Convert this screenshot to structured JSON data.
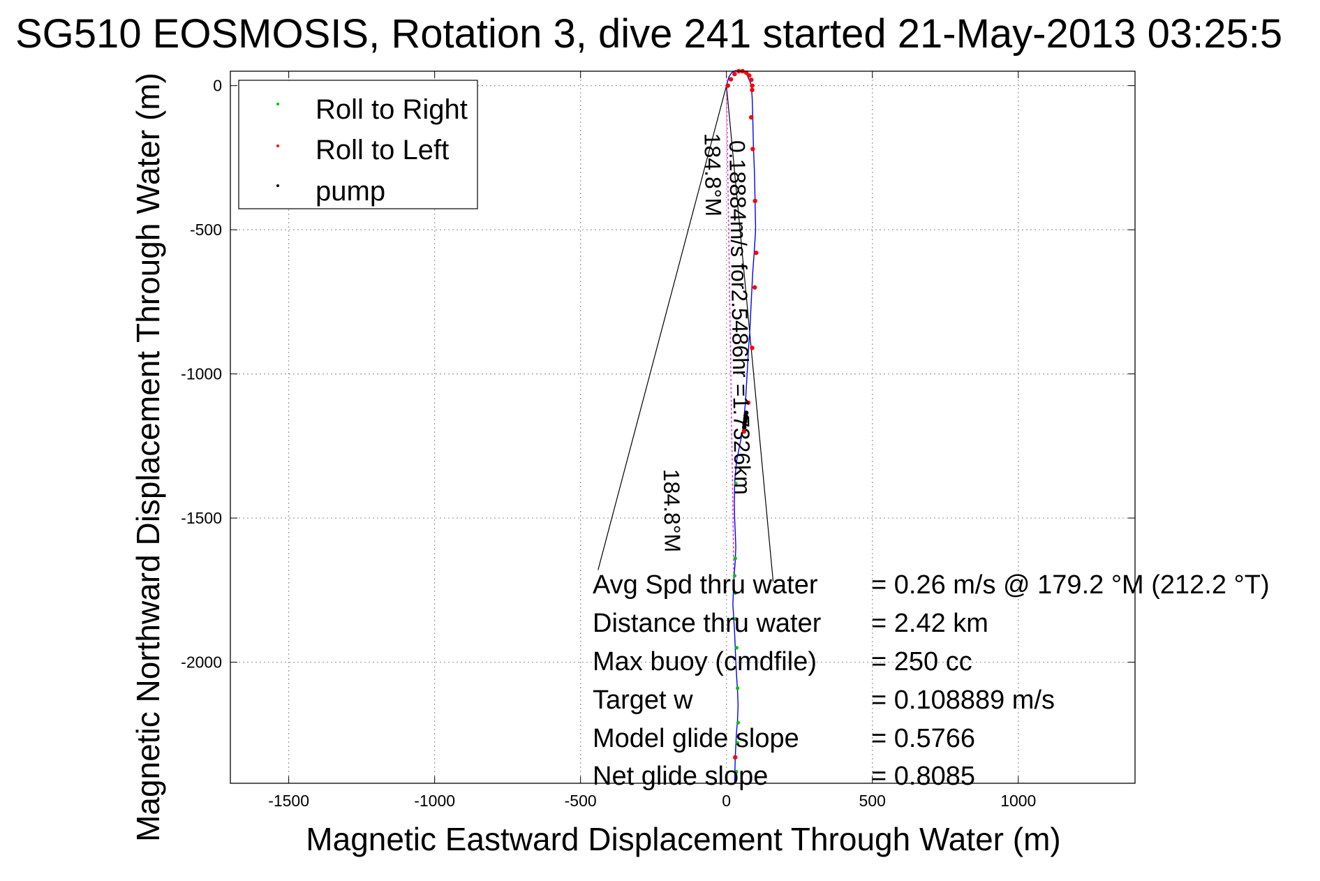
{
  "chart_data": {
    "type": "scatter",
    "title": "SG510 EOSMOSIS, Rotation 3, dive 241 started 21-May-2013 03:25:5",
    "xlabel": "Magnetic Eastward Displacement Through Water (m)",
    "ylabel": "Magnetic Northward Displacement Through Water (m)",
    "xlim": [
      -1700,
      1400
    ],
    "ylim": [
      -2420,
      50
    ],
    "x_ticks": [
      -1500,
      -1000,
      -500,
      0,
      500,
      1000
    ],
    "x_tick_labels": [
      "-1500",
      "-1000",
      "-500",
      "0",
      "500",
      "1000"
    ],
    "y_ticks": [
      0,
      -500,
      -1000,
      -1500,
      -2000
    ],
    "y_tick_labels": [
      "0",
      "-500",
      "-1000",
      "-1500",
      "-2000"
    ],
    "grid": true,
    "legend_position": "top-left",
    "legend": [
      {
        "label": "Roll to Right",
        "color": "#00c000"
      },
      {
        "label": "Roll to Left",
        "color": "#ff0000"
      },
      {
        "label": "pump",
        "color": "#000000"
      }
    ],
    "track_color": "#0000ff",
    "current_vector_color": "#ff00ff",
    "track": {
      "x": [
        0,
        8,
        18,
        30,
        45,
        60,
        70,
        80,
        85,
        88,
        90,
        92,
        96,
        98,
        100,
        95,
        90,
        85,
        80,
        75,
        72,
        68,
        65,
        60,
        55,
        45,
        35,
        30,
        28,
        27,
        28,
        30,
        32,
        30,
        26,
        24,
        22,
        25,
        28,
        30,
        32,
        35,
        38,
        40,
        38,
        34,
        30,
        28
      ],
      "y": [
        0,
        30,
        45,
        52,
        52,
        48,
        38,
        15,
        0,
        -40,
        -100,
        -200,
        -300,
        -400,
        -500,
        -580,
        -650,
        -750,
        -850,
        -920,
        -980,
        -1050,
        -1100,
        -1150,
        -1200,
        -1250,
        -1300,
        -1350,
        -1380,
        -1450,
        -1500,
        -1550,
        -1600,
        -1650,
        -1700,
        -1750,
        -1800,
        -1850,
        -1900,
        -1950,
        -2000,
        -2050,
        -2100,
        -2150,
        -2200,
        -2250,
        -2330,
        -2420
      ]
    },
    "roll_right": {
      "x": [
        32,
        30,
        28,
        30,
        32,
        35,
        38,
        40,
        38,
        34
      ],
      "y": [
        -1380,
        -1640,
        -1700,
        -1760,
        -1850,
        -1950,
        -2090,
        -2210,
        -2280,
        -2380
      ]
    },
    "roll_left": {
      "x": [
        5,
        15,
        28,
        42,
        55,
        68,
        78,
        85,
        88,
        88,
        85,
        90,
        98,
        102,
        97,
        88,
        75,
        68,
        60,
        30
      ],
      "y": [
        0,
        22,
        40,
        50,
        50,
        45,
        35,
        20,
        0,
        -15,
        -110,
        -220,
        -400,
        -580,
        -700,
        -910,
        -1100,
        -1150,
        -1200,
        -2330
      ]
    },
    "pump": {
      "x": [
        68,
        66,
        65,
        64,
        62,
        61
      ],
      "y": [
        -1135,
        -1145,
        -1155,
        -1165,
        -1175,
        -1185
      ]
    },
    "current_vector": {
      "x": [
        0,
        26
      ],
      "y": [
        0,
        -1732
      ]
    },
    "heading_lines": [
      {
        "x": [
          0,
          -440
        ],
        "y": [
          0,
          -1680
        ]
      },
      {
        "x": [
          0,
          160
        ],
        "y": [
          0,
          -1720
        ]
      }
    ],
    "annotations": [
      {
        "text": "0.18884m/s for2.5486hr =1.7326km",
        "x": 10,
        "y": -190,
        "angle": 89.1
      },
      {
        "text": "184.8°M",
        "x": -75,
        "y": -165,
        "angle": 89.1
      },
      {
        "text": "184.8°M",
        "x": -215,
        "y": -1330,
        "angle": 89.1
      }
    ],
    "stats": [
      {
        "label": "Avg Spd thru water",
        "value": "=  0.26 m/s @ 179.2 °M (212.2 °T)"
      },
      {
        "label": "Distance thru water",
        "value": "=  2.42 km"
      },
      {
        "label": "Max buoy (cmdfile)",
        "value": "= 250 cc"
      },
      {
        "label": "Target w",
        "value": "= 0.108889 m/s"
      },
      {
        "label": "Model glide slope",
        "value": "= 0.5766"
      },
      {
        "label": "Net glide slope",
        "value": "= 0.8085"
      }
    ]
  }
}
